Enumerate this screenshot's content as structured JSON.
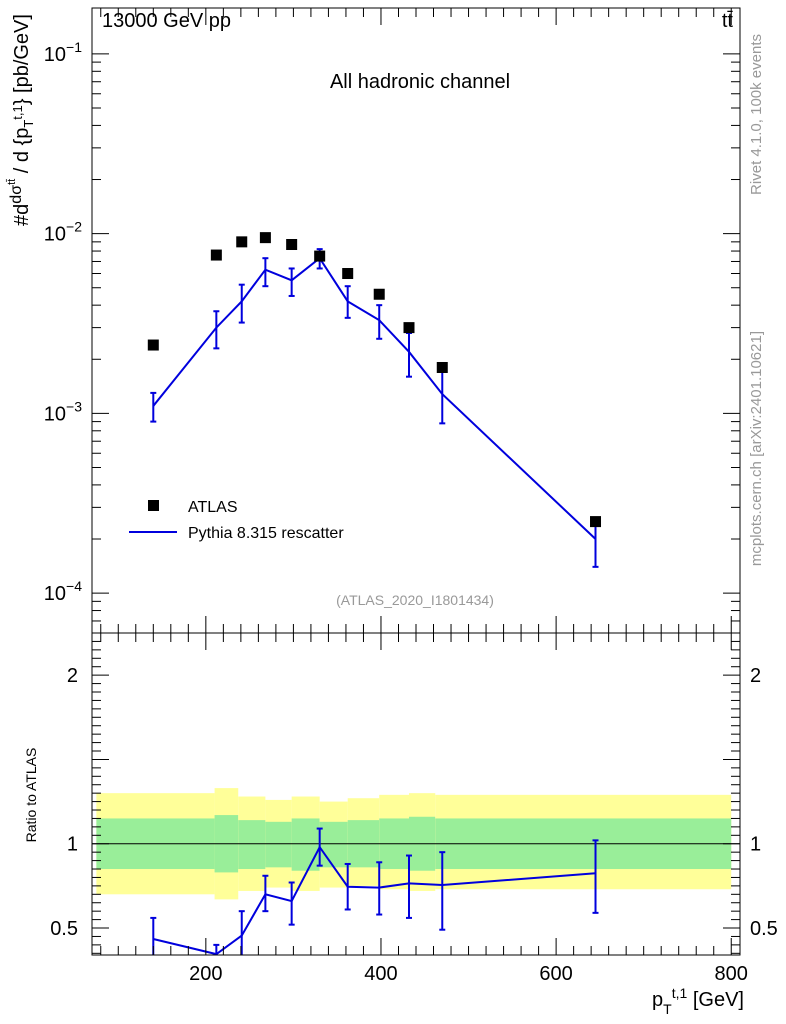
{
  "header": {
    "beam_label": "13000 GeV pp",
    "process_label": "tt̄",
    "channel_label": "All hadronic channel",
    "analysis_id": "(ATLAS_2020_I1801434)",
    "side_label_top": "Rivet 4.1.0,  100k events",
    "side_label_bottom": "mcplots.cern.ch [arXiv:2401.10621]"
  },
  "colors": {
    "data_marker": "#000000",
    "mc_line": "#0000dd",
    "band_inner": "#99ee99",
    "band_outer": "#ffff99"
  },
  "chart_data": [
    {
      "type": "line",
      "panel": "main",
      "title": "All hadronic channel",
      "ylabel": "#d dσ^tt̄ / d {p_T^{t,1}} [pb/GeV]",
      "yscale": "log",
      "ylim": [
        6e-05,
        0.18
      ],
      "xlim": [
        70,
        810
      ],
      "ytick_labels": [
        "10^-4",
        "10^-3",
        "10^-2",
        "10^-1"
      ],
      "legend": [
        "ATLAS",
        "Pythia 8.315 rescatter"
      ],
      "legend_position": "lower-left",
      "series": [
        {
          "name": "ATLAS",
          "style": "marker",
          "x": [
            140,
            212,
            241,
            268,
            298,
            330,
            362,
            398,
            432,
            470,
            645
          ],
          "y": [
            0.0024,
            0.0076,
            0.009,
            0.0095,
            0.0087,
            0.0075,
            0.006,
            0.0046,
            0.003,
            0.0018,
            0.00025
          ]
        },
        {
          "name": "Pythia 8.315 rescatter",
          "style": "line",
          "x": [
            140,
            212,
            241,
            268,
            298,
            330,
            362,
            398,
            432,
            470,
            645
          ],
          "y": [
            0.0011,
            0.003,
            0.0042,
            0.0063,
            0.0055,
            0.0073,
            0.0042,
            0.0033,
            0.0022,
            0.00128,
            0.0002
          ],
          "yerr_low": [
            0.0009,
            0.0023,
            0.0032,
            0.0051,
            0.0045,
            0.0064,
            0.0034,
            0.0026,
            0.0016,
            0.00088,
            0.00014
          ],
          "yerr_high": [
            0.0013,
            0.0037,
            0.0052,
            0.0073,
            0.0064,
            0.0082,
            0.0051,
            0.004,
            0.0028,
            0.0017,
            0.00026
          ]
        }
      ]
    },
    {
      "type": "line",
      "panel": "ratio",
      "ylabel": "Ratio to ATLAS",
      "xlabel": "p_T^{t,1} [GeV]",
      "ylim": [
        0.34,
        2.25
      ],
      "xlim": [
        70,
        810
      ],
      "xtick_labels": [
        "200",
        "400",
        "600",
        "800"
      ],
      "ytick_labels": [
        "0.5",
        "1",
        "2"
      ],
      "reference_line": 1,
      "bands": {
        "bin_edges": [
          75,
          210,
          237,
          268,
          298,
          330,
          362,
          398,
          432,
          462,
          800
        ],
        "inner_low": [
          0.85,
          0.83,
          0.85,
          0.86,
          0.84,
          0.86,
          0.86,
          0.85,
          0.84,
          0.85,
          0.87
        ],
        "inner_high": [
          1.15,
          1.17,
          1.14,
          1.13,
          1.15,
          1.13,
          1.14,
          1.15,
          1.16,
          1.15,
          1.14
        ],
        "outer_low": [
          0.7,
          0.67,
          0.72,
          0.74,
          0.72,
          0.74,
          0.75,
          0.73,
          0.72,
          0.73,
          0.76
        ],
        "outer_high": [
          1.3,
          1.33,
          1.28,
          1.26,
          1.28,
          1.25,
          1.27,
          1.29,
          1.3,
          1.29,
          1.26
        ]
      },
      "series": [
        {
          "name": "Pythia 8.315 rescatter",
          "style": "line",
          "x": [
            140,
            212,
            241,
            268,
            298,
            330,
            362,
            398,
            432,
            470,
            645
          ],
          "y": [
            0.435,
            0.345,
            0.455,
            0.7,
            0.66,
            0.98,
            0.745,
            0.74,
            0.765,
            0.755,
            0.825
          ],
          "yerr_low": [
            0.3,
            0.3,
            0.33,
            0.6,
            0.52,
            0.87,
            0.61,
            0.58,
            0.56,
            0.49,
            0.59
          ],
          "yerr_high": [
            0.56,
            0.4,
            0.6,
            0.81,
            0.77,
            1.09,
            0.88,
            0.89,
            0.93,
            0.95,
            1.02
          ]
        }
      ]
    }
  ]
}
